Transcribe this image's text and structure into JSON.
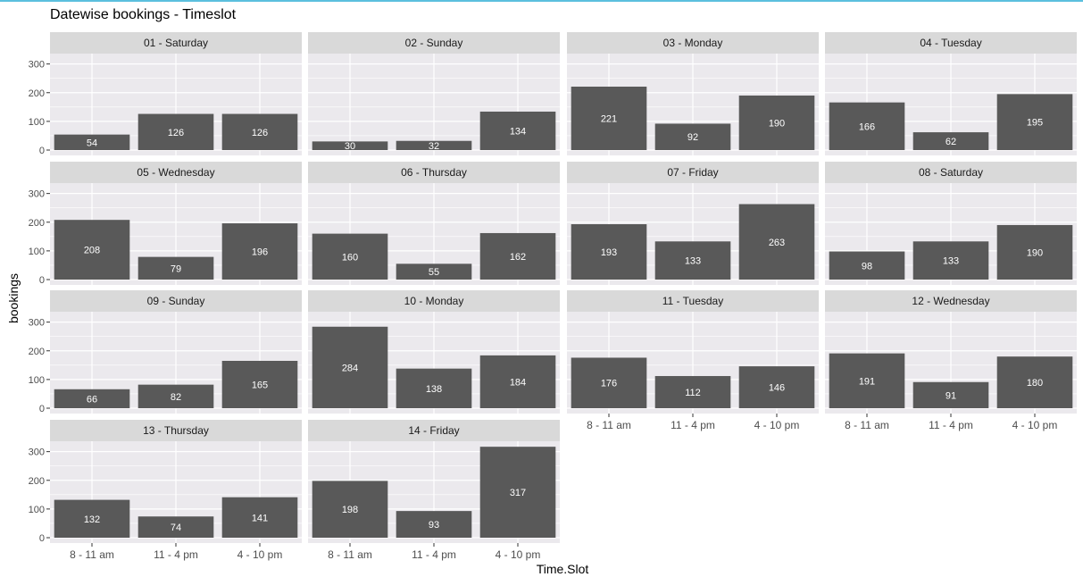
{
  "chart_data": {
    "type": "bar",
    "title": "Datewise bookings - Timeslot",
    "xlabel": "Time.Slot",
    "ylabel": "bookings",
    "ylim": [
      0,
      330
    ],
    "yticks": [
      0,
      100,
      200,
      300
    ],
    "categories": [
      "8 - 11 am",
      "11 - 4 pm",
      "4 - 10 pm"
    ],
    "grid": true,
    "colors": {
      "bar": "#595959",
      "panel_bg": "#ebe9ed",
      "strip_bg": "#d9d9d9",
      "grid": "#ffffff",
      "bar_label": "#ffffff"
    },
    "facets": [
      {
        "label": "01 - Saturday",
        "values": [
          54,
          126,
          126
        ]
      },
      {
        "label": "02 - Sunday",
        "values": [
          30,
          32,
          134
        ]
      },
      {
        "label": "03 - Monday",
        "values": [
          221,
          92,
          190
        ]
      },
      {
        "label": "04 - Tuesday",
        "values": [
          166,
          62,
          195
        ]
      },
      {
        "label": "05 - Wednesday",
        "values": [
          208,
          79,
          196
        ]
      },
      {
        "label": "06 - Thursday",
        "values": [
          160,
          55,
          162
        ]
      },
      {
        "label": "07 - Friday",
        "values": [
          193,
          133,
          263
        ]
      },
      {
        "label": "08 - Saturday",
        "values": [
          98,
          133,
          190
        ]
      },
      {
        "label": "09 - Sunday",
        "values": [
          66,
          82,
          165
        ]
      },
      {
        "label": "10 - Monday",
        "values": [
          284,
          138,
          184
        ]
      },
      {
        "label": "11 - Tuesday",
        "values": [
          176,
          112,
          146
        ]
      },
      {
        "label": "12 - Wednesday",
        "values": [
          191,
          91,
          180
        ]
      },
      {
        "label": "13 - Thursday",
        "values": [
          132,
          74,
          141
        ]
      },
      {
        "label": "14 - Friday",
        "values": [
          198,
          93,
          317
        ]
      }
    ]
  }
}
